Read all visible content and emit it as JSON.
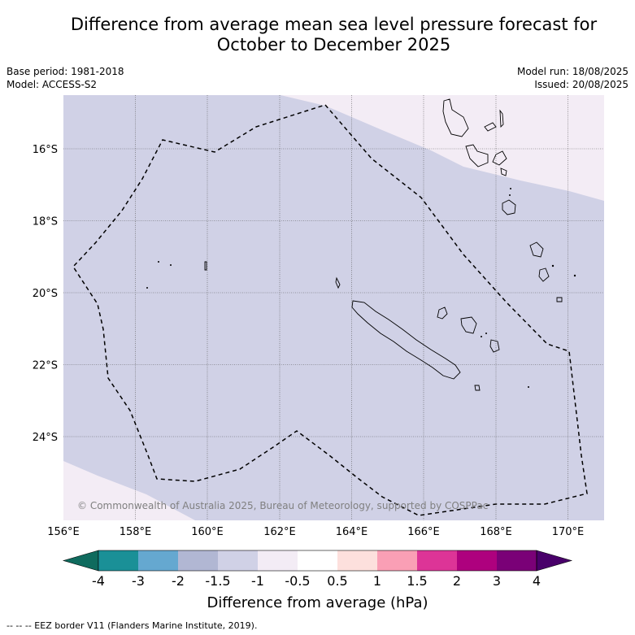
{
  "title_line1": "Difference from average mean sea level pressure forecast for",
  "title_line2": "October to December 2025",
  "base_period": "Base period: 1981-2018",
  "model": "Model: ACCESS-S2",
  "model_run": "Model run: 18/08/2025",
  "issued": "Issued: 20/08/2025",
  "copyright": "© Commonwealth of Australia 2025, Bureau of Meteorology, supported by COSPPac",
  "lon_labels": [
    "156°E",
    "158°E",
    "160°E",
    "162°E",
    "164°E",
    "166°E",
    "168°E",
    "170°E"
  ],
  "lat_labels": [
    "16°S",
    "18°S",
    "20°S",
    "22°S",
    "24°S"
  ],
  "colorbar": {
    "title": "Difference from average (hPa)",
    "tick_labels": [
      "-4",
      "-3",
      "-2",
      "-1.5",
      "-1",
      "-0.5",
      "0.5",
      "1",
      "1.5",
      "2",
      "3",
      "4"
    ],
    "colors": [
      "#0f6b5e",
      "#1a9097",
      "#65a8d0",
      "#b1b7d3",
      "#d0d1e6",
      "#f3ecf5",
      "#ffffff",
      "#fde0dd",
      "#fa9fb5",
      "#dd3497",
      "#ae017e",
      "#7a0177",
      "#49006a"
    ]
  },
  "fill_colors": {
    "main": "#d0d1e6",
    "light": "#f3ecf5"
  },
  "footer": "--  --  -- EEZ border V11 (Flanders Marine Institute, 2019)."
}
